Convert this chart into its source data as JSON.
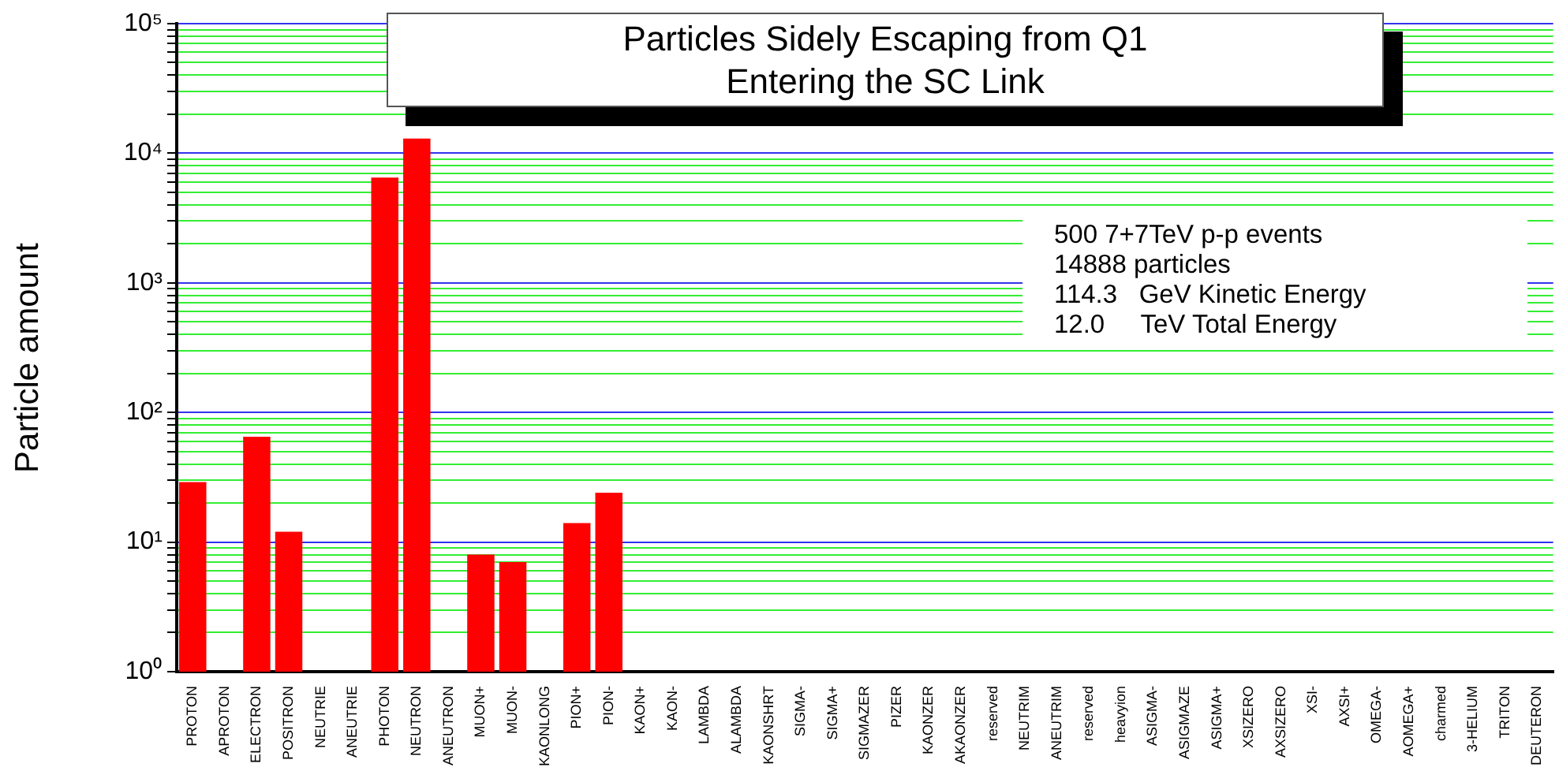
{
  "chart_data": {
    "type": "bar",
    "title": "Particles Sidely Escaping from Q1\nEntering the SC Link",
    "ylabel": "Particle amount",
    "categories": [
      "PROTON",
      "APROTON",
      "ELECTRON",
      "POSITRON",
      "NEUTRIE",
      "ANEUTRIE",
      "PHOTON",
      "NEUTRON",
      "ANEUTRON",
      "MUON+",
      "MUON-",
      "KAONLONG",
      "PION+",
      "PION-",
      "KAON+",
      "KAON-",
      "LAMBDA",
      "ALAMBDA",
      "KAONSHRT",
      "SIGMA-",
      "SIGMA+",
      "SIGMAZER",
      "PIZER",
      "KAONZER",
      "AKAONZER",
      "reserved",
      "NEUTRIM",
      "ANEUTRIM",
      "reserved",
      "heavyion",
      "ASIGMA-",
      "ASIGMAZE",
      "ASIGMA+",
      "XSIZERO",
      "AXSIZERO",
      "XSI-",
      "AXSI+",
      "OMEGA-",
      "AOMEGA+",
      "charmed",
      "3-HELIUM",
      "TRITON",
      "DEUTERON"
    ],
    "values": [
      29,
      null,
      65,
      12,
      null,
      null,
      6500,
      13000,
      null,
      8,
      7,
      null,
      14,
      24,
      null,
      null,
      null,
      null,
      null,
      null,
      null,
      null,
      null,
      null,
      null,
      null,
      null,
      null,
      null,
      null,
      null,
      null,
      null,
      null,
      null,
      null,
      null,
      null,
      null,
      null,
      null,
      null,
      null
    ],
    "color": "#ff0000",
    "log": true,
    "ylim": [
      1,
      100000
    ],
    "yticks": [
      {
        "value": 1,
        "label": "10⁰"
      },
      {
        "value": 2,
        "label": null
      },
      {
        "value": 3,
        "label": null
      },
      {
        "value": 4,
        "label": null
      },
      {
        "value": 5,
        "label": null
      },
      {
        "value": 6,
        "label": null
      },
      {
        "value": 7,
        "label": null
      },
      {
        "value": 8,
        "label": null
      },
      {
        "value": 9,
        "label": null
      },
      {
        "value": 10,
        "label": "10¹"
      },
      {
        "value": 20,
        "label": null
      },
      {
        "value": 30,
        "label": null
      },
      {
        "value": 40,
        "label": null
      },
      {
        "value": 50,
        "label": null
      },
      {
        "value": 60,
        "label": null
      },
      {
        "value": 70,
        "label": null
      },
      {
        "value": 80,
        "label": null
      },
      {
        "value": 90,
        "label": null
      },
      {
        "value": 100,
        "label": "10²"
      },
      {
        "value": 200,
        "label": null
      },
      {
        "value": 300,
        "label": null
      },
      {
        "value": 400,
        "label": null
      },
      {
        "value": 500,
        "label": null
      },
      {
        "value": 600,
        "label": null
      },
      {
        "value": 700,
        "label": null
      },
      {
        "value": 800,
        "label": null
      },
      {
        "value": 900,
        "label": null
      },
      {
        "value": 1000,
        "label": "10³"
      },
      {
        "value": 2000,
        "label": null
      },
      {
        "value": 3000,
        "label": null
      },
      {
        "value": 4000,
        "label": null
      },
      {
        "value": 5000,
        "label": null
      },
      {
        "value": 6000,
        "label": null
      },
      {
        "value": 7000,
        "label": null
      },
      {
        "value": 8000,
        "label": null
      },
      {
        "value": 9000,
        "label": null
      },
      {
        "value": 10000,
        "label": "10⁴"
      },
      {
        "value": 20000,
        "label": null
      },
      {
        "value": 30000,
        "label": null
      },
      {
        "value": 40000,
        "label": null
      },
      {
        "value": 50000,
        "label": null
      },
      {
        "value": 60000,
        "label": null
      },
      {
        "value": 70000,
        "label": null
      },
      {
        "value": 80000,
        "label": null
      },
      {
        "value": 90000,
        "label": null
      },
      {
        "value": 100000,
        "label": "10⁵"
      }
    ],
    "grid": "y",
    "annotations": [
      "500 7+7TeV p-p events",
      "14888 particles",
      "114.3   GeV Kinetic Energy",
      "12.0     TeV Total Energy"
    ]
  }
}
